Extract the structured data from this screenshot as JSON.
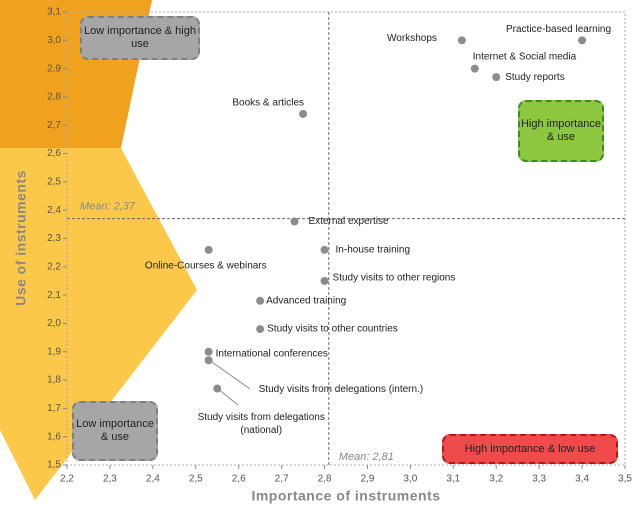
{
  "chart_data": {
    "type": "scatter",
    "x_label": "Importance of instruments",
    "y_label": "Use of instruments",
    "xlim": [
      2.2,
      3.5
    ],
    "ylim": [
      1.5,
      3.1
    ],
    "xticks": [
      {
        "value": 2.2,
        "label": "2,2"
      },
      {
        "value": 2.3,
        "label": "2,3"
      },
      {
        "value": 2.4,
        "label": "2,4"
      },
      {
        "value": 2.5,
        "label": "2,5"
      },
      {
        "value": 2.6,
        "label": "2,6"
      },
      {
        "value": 2.7,
        "label": "2,7"
      },
      {
        "value": 2.8,
        "label": "2,8"
      },
      {
        "value": 2.9,
        "label": "2,9"
      },
      {
        "value": 3.0,
        "label": "3,0"
      },
      {
        "value": 3.1,
        "label": "3,1"
      },
      {
        "value": 3.2,
        "label": "3,2"
      },
      {
        "value": 3.3,
        "label": "3,3"
      },
      {
        "value": 3.4,
        "label": "3,4"
      },
      {
        "value": 3.5,
        "label": "3,5"
      }
    ],
    "yticks": [
      {
        "value": 1.5,
        "label": "1,5"
      },
      {
        "value": 1.6,
        "label": "1,6"
      },
      {
        "value": 1.7,
        "label": "1,7"
      },
      {
        "value": 1.8,
        "label": "1,8"
      },
      {
        "value": 1.9,
        "label": "1,9"
      },
      {
        "value": 2.0,
        "label": "2,0"
      },
      {
        "value": 2.1,
        "label": "2,1"
      },
      {
        "value": 2.2,
        "label": "2,2"
      },
      {
        "value": 2.3,
        "label": "2,3"
      },
      {
        "value": 2.4,
        "label": "2,4"
      },
      {
        "value": 2.5,
        "label": "2,5"
      },
      {
        "value": 2.6,
        "label": "2,6"
      },
      {
        "value": 2.7,
        "label": "2,7"
      },
      {
        "value": 2.8,
        "label": "2,8"
      },
      {
        "value": 2.9,
        "label": "2,9"
      },
      {
        "value": 3.0,
        "label": "3,0"
      },
      {
        "value": 3.1,
        "label": "3,1"
      }
    ],
    "mean_x": {
      "value": 2.81,
      "label": "Mean: 2,81"
    },
    "mean_y": {
      "value": 2.37,
      "label": "Mean: 2,37"
    },
    "color": "#8c8c8c",
    "labels": [
      "Practice-based learning",
      "Workshops",
      "Internet & Social media",
      "Study reports",
      "Books & articles",
      "External expertise",
      "In-house training",
      "Online-Courses & webinars",
      "Study visits to other regions",
      "Advanced training",
      "Study visits to other countries",
      "International conferences",
      "Study visits from delegations (intern.)",
      "Study visits from delegations (national)"
    ],
    "x": [
      3.4,
      3.12,
      3.15,
      3.2,
      2.75,
      2.73,
      2.8,
      2.53,
      2.8,
      2.65,
      2.65,
      2.53,
      2.53,
      2.55
    ],
    "values": [
      3.0,
      3.0,
      2.9,
      2.87,
      2.74,
      2.36,
      2.26,
      2.26,
      2.15,
      2.08,
      1.98,
      1.9,
      1.87,
      1.77
    ],
    "quadrants": [
      "Low importance & high use",
      "High importance & use",
      "Low importance & use",
      "High importance & low use"
    ]
  }
}
